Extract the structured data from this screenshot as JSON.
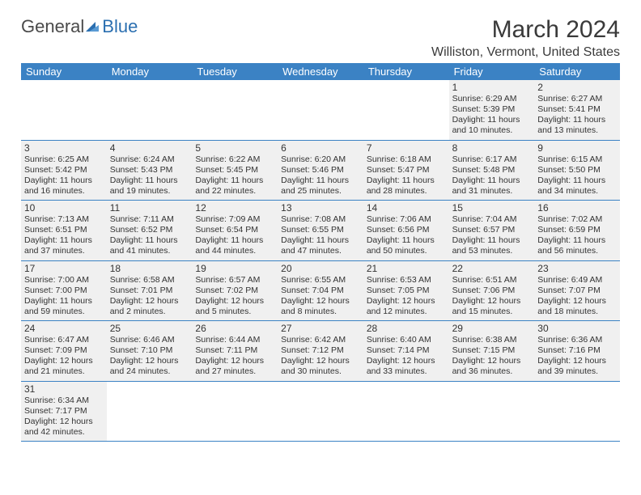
{
  "logo": {
    "general": "General",
    "blue": "Blue"
  },
  "title": "March 2024",
  "location": "Williston, Vermont, United States",
  "colors": {
    "header_bg": "#3b82c4",
    "header_text": "#ffffff",
    "cell_bg": "#f0f0f0",
    "text": "#333333",
    "row_border": "#3b82c4",
    "logo_gray": "#4a4a4a",
    "logo_blue": "#2b6fb0"
  },
  "weekdays": [
    "Sunday",
    "Monday",
    "Tuesday",
    "Wednesday",
    "Thursday",
    "Friday",
    "Saturday"
  ],
  "weeks": [
    [
      null,
      null,
      null,
      null,
      null,
      {
        "n": "1",
        "sr": "Sunrise: 6:29 AM",
        "ss": "Sunset: 5:39 PM",
        "d1": "Daylight: 11 hours",
        "d2": "and 10 minutes."
      },
      {
        "n": "2",
        "sr": "Sunrise: 6:27 AM",
        "ss": "Sunset: 5:41 PM",
        "d1": "Daylight: 11 hours",
        "d2": "and 13 minutes."
      }
    ],
    [
      {
        "n": "3",
        "sr": "Sunrise: 6:25 AM",
        "ss": "Sunset: 5:42 PM",
        "d1": "Daylight: 11 hours",
        "d2": "and 16 minutes."
      },
      {
        "n": "4",
        "sr": "Sunrise: 6:24 AM",
        "ss": "Sunset: 5:43 PM",
        "d1": "Daylight: 11 hours",
        "d2": "and 19 minutes."
      },
      {
        "n": "5",
        "sr": "Sunrise: 6:22 AM",
        "ss": "Sunset: 5:45 PM",
        "d1": "Daylight: 11 hours",
        "d2": "and 22 minutes."
      },
      {
        "n": "6",
        "sr": "Sunrise: 6:20 AM",
        "ss": "Sunset: 5:46 PM",
        "d1": "Daylight: 11 hours",
        "d2": "and 25 minutes."
      },
      {
        "n": "7",
        "sr": "Sunrise: 6:18 AM",
        "ss": "Sunset: 5:47 PM",
        "d1": "Daylight: 11 hours",
        "d2": "and 28 minutes."
      },
      {
        "n": "8",
        "sr": "Sunrise: 6:17 AM",
        "ss": "Sunset: 5:48 PM",
        "d1": "Daylight: 11 hours",
        "d2": "and 31 minutes."
      },
      {
        "n": "9",
        "sr": "Sunrise: 6:15 AM",
        "ss": "Sunset: 5:50 PM",
        "d1": "Daylight: 11 hours",
        "d2": "and 34 minutes."
      }
    ],
    [
      {
        "n": "10",
        "sr": "Sunrise: 7:13 AM",
        "ss": "Sunset: 6:51 PM",
        "d1": "Daylight: 11 hours",
        "d2": "and 37 minutes."
      },
      {
        "n": "11",
        "sr": "Sunrise: 7:11 AM",
        "ss": "Sunset: 6:52 PM",
        "d1": "Daylight: 11 hours",
        "d2": "and 41 minutes."
      },
      {
        "n": "12",
        "sr": "Sunrise: 7:09 AM",
        "ss": "Sunset: 6:54 PM",
        "d1": "Daylight: 11 hours",
        "d2": "and 44 minutes."
      },
      {
        "n": "13",
        "sr": "Sunrise: 7:08 AM",
        "ss": "Sunset: 6:55 PM",
        "d1": "Daylight: 11 hours",
        "d2": "and 47 minutes."
      },
      {
        "n": "14",
        "sr": "Sunrise: 7:06 AM",
        "ss": "Sunset: 6:56 PM",
        "d1": "Daylight: 11 hours",
        "d2": "and 50 minutes."
      },
      {
        "n": "15",
        "sr": "Sunrise: 7:04 AM",
        "ss": "Sunset: 6:57 PM",
        "d1": "Daylight: 11 hours",
        "d2": "and 53 minutes."
      },
      {
        "n": "16",
        "sr": "Sunrise: 7:02 AM",
        "ss": "Sunset: 6:59 PM",
        "d1": "Daylight: 11 hours",
        "d2": "and 56 minutes."
      }
    ],
    [
      {
        "n": "17",
        "sr": "Sunrise: 7:00 AM",
        "ss": "Sunset: 7:00 PM",
        "d1": "Daylight: 11 hours",
        "d2": "and 59 minutes."
      },
      {
        "n": "18",
        "sr": "Sunrise: 6:58 AM",
        "ss": "Sunset: 7:01 PM",
        "d1": "Daylight: 12 hours",
        "d2": "and 2 minutes."
      },
      {
        "n": "19",
        "sr": "Sunrise: 6:57 AM",
        "ss": "Sunset: 7:02 PM",
        "d1": "Daylight: 12 hours",
        "d2": "and 5 minutes."
      },
      {
        "n": "20",
        "sr": "Sunrise: 6:55 AM",
        "ss": "Sunset: 7:04 PM",
        "d1": "Daylight: 12 hours",
        "d2": "and 8 minutes."
      },
      {
        "n": "21",
        "sr": "Sunrise: 6:53 AM",
        "ss": "Sunset: 7:05 PM",
        "d1": "Daylight: 12 hours",
        "d2": "and 12 minutes."
      },
      {
        "n": "22",
        "sr": "Sunrise: 6:51 AM",
        "ss": "Sunset: 7:06 PM",
        "d1": "Daylight: 12 hours",
        "d2": "and 15 minutes."
      },
      {
        "n": "23",
        "sr": "Sunrise: 6:49 AM",
        "ss": "Sunset: 7:07 PM",
        "d1": "Daylight: 12 hours",
        "d2": "and 18 minutes."
      }
    ],
    [
      {
        "n": "24",
        "sr": "Sunrise: 6:47 AM",
        "ss": "Sunset: 7:09 PM",
        "d1": "Daylight: 12 hours",
        "d2": "and 21 minutes."
      },
      {
        "n": "25",
        "sr": "Sunrise: 6:46 AM",
        "ss": "Sunset: 7:10 PM",
        "d1": "Daylight: 12 hours",
        "d2": "and 24 minutes."
      },
      {
        "n": "26",
        "sr": "Sunrise: 6:44 AM",
        "ss": "Sunset: 7:11 PM",
        "d1": "Daylight: 12 hours",
        "d2": "and 27 minutes."
      },
      {
        "n": "27",
        "sr": "Sunrise: 6:42 AM",
        "ss": "Sunset: 7:12 PM",
        "d1": "Daylight: 12 hours",
        "d2": "and 30 minutes."
      },
      {
        "n": "28",
        "sr": "Sunrise: 6:40 AM",
        "ss": "Sunset: 7:14 PM",
        "d1": "Daylight: 12 hours",
        "d2": "and 33 minutes."
      },
      {
        "n": "29",
        "sr": "Sunrise: 6:38 AM",
        "ss": "Sunset: 7:15 PM",
        "d1": "Daylight: 12 hours",
        "d2": "and 36 minutes."
      },
      {
        "n": "30",
        "sr": "Sunrise: 6:36 AM",
        "ss": "Sunset: 7:16 PM",
        "d1": "Daylight: 12 hours",
        "d2": "and 39 minutes."
      }
    ],
    [
      {
        "n": "31",
        "sr": "Sunrise: 6:34 AM",
        "ss": "Sunset: 7:17 PM",
        "d1": "Daylight: 12 hours",
        "d2": "and 42 minutes."
      },
      null,
      null,
      null,
      null,
      null,
      null
    ]
  ]
}
